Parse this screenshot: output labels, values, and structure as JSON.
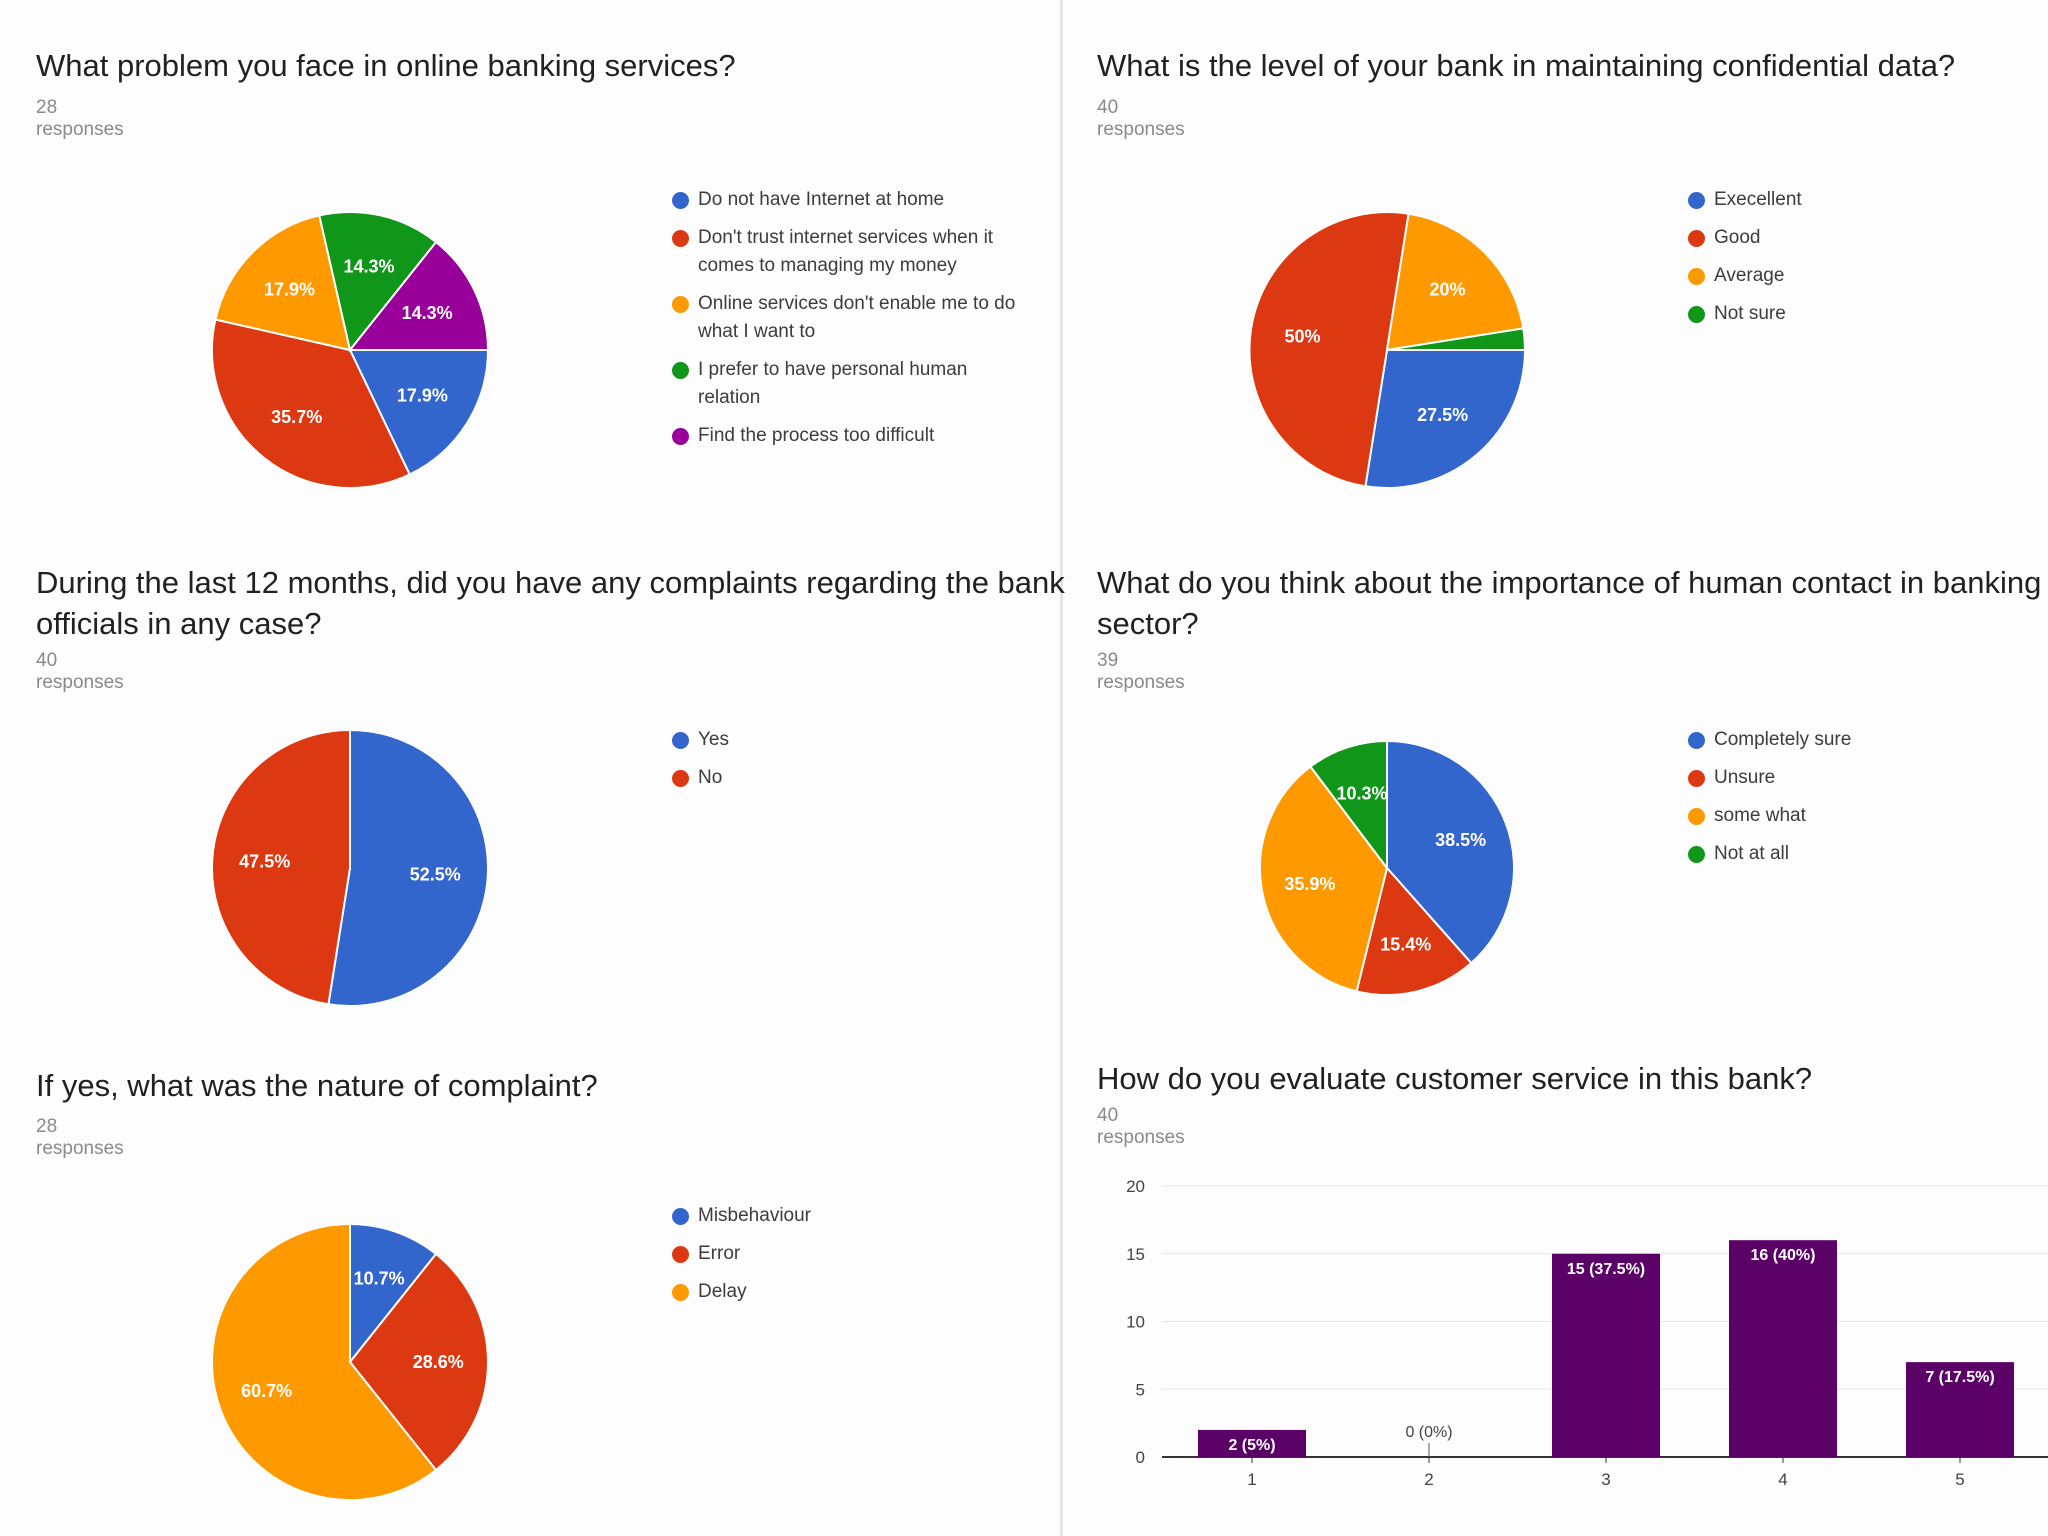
{
  "charts": [
    {
      "id": "q1",
      "title": "What problem you face in online banking services?",
      "responses": "28 responses",
      "type": "pie",
      "legend": [
        {
          "label": "Do not have Internet at home",
          "color": "#3366cc"
        },
        {
          "label": "Don't trust internet services when it comes to managing my money",
          "color": "#dc3912"
        },
        {
          "label": "Online services don't enable me to do what I want to",
          "color": "#ff9900"
        },
        {
          "label": "I prefer to have personal human relation",
          "color": "#109618"
        },
        {
          "label": "Find the process too difficult",
          "color": "#990099"
        }
      ]
    },
    {
      "id": "q2",
      "title": "What is the level of your bank in maintaining confidential data?",
      "responses": "40 responses",
      "type": "pie",
      "legend": [
        {
          "label": "Execellent",
          "color": "#3366cc"
        },
        {
          "label": "Good",
          "color": "#dc3912"
        },
        {
          "label": "Average",
          "color": "#ff9900"
        },
        {
          "label": "Not sure",
          "color": "#109618"
        }
      ]
    },
    {
      "id": "q3",
      "title": "During the last 12 months, did you have any complaints regarding the bank",
      "title2": "officials in any case?",
      "responses": "40 responses",
      "type": "pie",
      "legend": [
        {
          "label": "Yes",
          "color": "#3366cc"
        },
        {
          "label": "No",
          "color": "#dc3912"
        }
      ]
    },
    {
      "id": "q4",
      "title": "What do you think about the importance of human contact in banking",
      "title2": "sector?",
      "responses": "39 responses",
      "type": "pie",
      "legend": [
        {
          "label": "Completely sure",
          "color": "#3366cc"
        },
        {
          "label": "Unsure",
          "color": "#dc3912"
        },
        {
          "label": "some what",
          "color": "#ff9900"
        },
        {
          "label": "Not at all",
          "color": "#109618"
        }
      ]
    },
    {
      "id": "q5",
      "title": "If yes, what was the nature of complaint?",
      "responses": "28 responses",
      "type": "pie",
      "legend": [
        {
          "label": "Misbehaviour",
          "color": "#3366cc"
        },
        {
          "label": "Error",
          "color": "#dc3912"
        },
        {
          "label": "Delay",
          "color": "#ff9900"
        }
      ]
    },
    {
      "id": "q6",
      "title": "How do you evaluate customer service in this bank?",
      "responses": "40 responses",
      "type": "bar"
    }
  ],
  "chart_data": [
    {
      "type": "pie",
      "title": "What problem you face in online banking services?",
      "slices": [
        {
          "label": "Do not have Internet at home",
          "value": 17.9,
          "display": "17.9%",
          "color": "#3366cc"
        },
        {
          "label": "Don't trust internet services when it comes to managing my money",
          "value": 35.7,
          "display": "35.7%",
          "color": "#dc3912"
        },
        {
          "label": "Online services don't enable me to do what I want to",
          "value": 17.9,
          "display": "17.9%",
          "color": "#ff9900"
        },
        {
          "label": "I prefer to have personal human relation",
          "value": 14.3,
          "display": "14.3%",
          "color": "#109618"
        },
        {
          "label": "Find the process too difficult",
          "value": 14.3,
          "display": "14.3%",
          "color": "#990099"
        }
      ]
    },
    {
      "type": "pie",
      "title": "What is the level of your bank in maintaining confidential data?",
      "slices": [
        {
          "label": "Execellent",
          "value": 27.5,
          "display": "27.5%",
          "color": "#3366cc"
        },
        {
          "label": "Good",
          "value": 50,
          "display": "50%",
          "color": "#dc3912"
        },
        {
          "label": "Average",
          "value": 20,
          "display": "20%",
          "color": "#ff9900"
        },
        {
          "label": "Not sure",
          "value": 2.5,
          "display": "",
          "color": "#109618"
        }
      ]
    },
    {
      "type": "pie",
      "title": "During the last 12 months, did you have any complaints regarding the bank officials in any case?",
      "slices": [
        {
          "label": "Yes",
          "value": 52.5,
          "display": "52.5%",
          "color": "#3366cc"
        },
        {
          "label": "No",
          "value": 47.5,
          "display": "47.5%",
          "color": "#dc3912"
        }
      ]
    },
    {
      "type": "pie",
      "title": "What do you think about the importance of human contact in banking sector?",
      "slices": [
        {
          "label": "Completely sure",
          "value": 38.5,
          "display": "38.5%",
          "color": "#3366cc"
        },
        {
          "label": "Unsure",
          "value": 15.4,
          "display": "15.4%",
          "color": "#dc3912"
        },
        {
          "label": "some what",
          "value": 35.9,
          "display": "35.9%",
          "color": "#ff9900"
        },
        {
          "label": "Not at all",
          "value": 10.3,
          "display": "10.3%",
          "color": "#109618"
        }
      ]
    },
    {
      "type": "pie",
      "title": "If yes, what was the nature of complaint?",
      "slices": [
        {
          "label": "Misbehaviour",
          "value": 10.7,
          "display": "10.7%",
          "color": "#3366cc"
        },
        {
          "label": "Error",
          "value": 28.6,
          "display": "28.6%",
          "color": "#dc3912"
        },
        {
          "label": "Delay",
          "value": 60.7,
          "display": "60.7%",
          "color": "#ff9900"
        }
      ]
    },
    {
      "type": "bar",
      "title": "How do you evaluate customer service in this bank?",
      "categories": [
        "1",
        "2",
        "3",
        "4",
        "5"
      ],
      "values": [
        2,
        0,
        15,
        16,
        7
      ],
      "labels": [
        "2 (5%)",
        "0 (0%)",
        "15 (37.5%)",
        "16 (40%)",
        "7 (17.5%)"
      ],
      "ylim": [
        0,
        20
      ],
      "yticks": [
        0,
        5,
        10,
        15,
        20
      ],
      "color": "#5b0066",
      "grid": true
    }
  ]
}
